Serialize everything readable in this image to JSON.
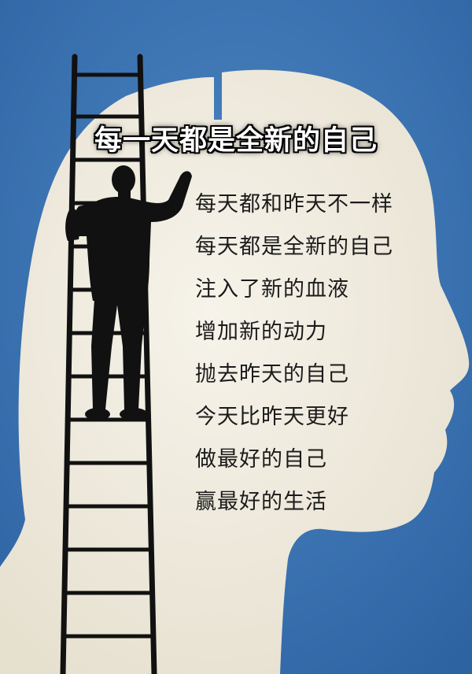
{
  "poster": {
    "title": "每一天都是全新的自己",
    "lines": [
      "每天都和昨天不一样",
      "每天都是全新的自己",
      "注入了新的血液",
      "增加新的动力",
      "抛去昨天的自己",
      "今天比昨天更好",
      "做最好的自己",
      "赢最好的生活"
    ]
  },
  "colors": {
    "background": "#3f78b8",
    "head": "#f1ede2",
    "ink": "#111111",
    "text": "#1b1b1b",
    "title_fill": "#ffffff",
    "title_outline": "#000000"
  }
}
